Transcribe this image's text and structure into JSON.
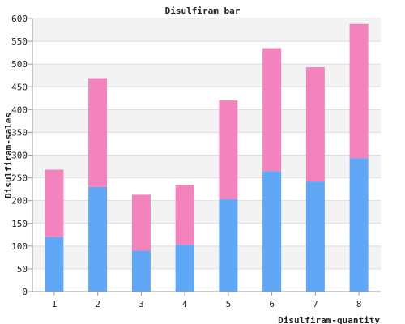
{
  "chart_data": {
    "type": "bar",
    "stacked": true,
    "title": "Disulfiram bar",
    "xlabel": "Disulfiram-quantity",
    "ylabel": "Disulfiram-sales",
    "categories": [
      "1",
      "2",
      "3",
      "4",
      "5",
      "6",
      "7",
      "8"
    ],
    "series": [
      {
        "color": "#60a8f6",
        "values": [
          120,
          230,
          90,
          103,
          203,
          265,
          242,
          293
        ]
      },
      {
        "color": "#f383bd",
        "values": [
          148,
          239,
          123,
          131,
          217,
          270,
          251,
          295
        ]
      }
    ],
    "ylim": [
      0,
      600
    ],
    "yticks": [
      "0",
      "50",
      "100",
      "150",
      "200",
      "250",
      "300",
      "350",
      "400",
      "450",
      "500",
      "550",
      "600"
    ],
    "grid": true,
    "band_colors": [
      "#f3f3f3",
      "#ffffff"
    ]
  }
}
